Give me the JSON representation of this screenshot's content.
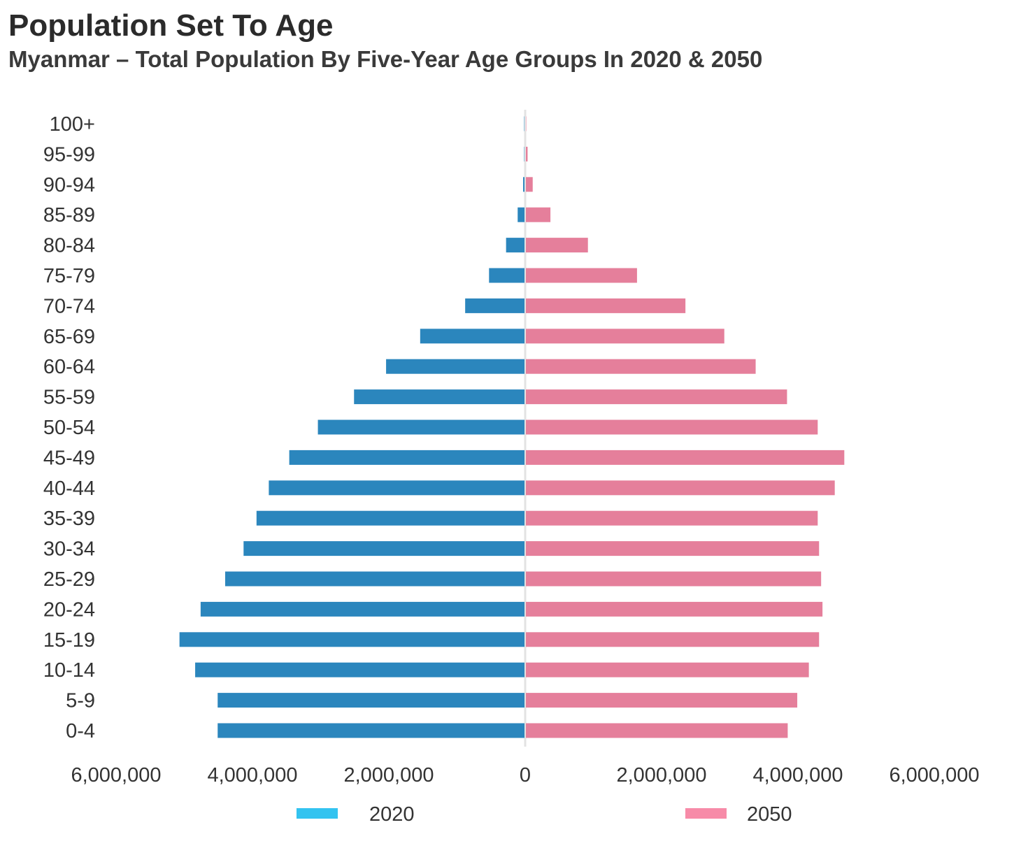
{
  "chart_data": {
    "type": "bar",
    "orientation": "horizontal",
    "layout": "population-pyramid",
    "title": "Population Set To Age",
    "subtitle": "Myanmar – Total Population By Five-Year Age Groups In 2020 & 2050",
    "xlabel": "",
    "ylabel": "",
    "categories": [
      "0-4",
      "5-9",
      "10-14",
      "15-19",
      "20-24",
      "25-29",
      "30-34",
      "35-39",
      "40-44",
      "45-49",
      "50-54",
      "55-59",
      "60-64",
      "65-69",
      "70-74",
      "75-79",
      "80-84",
      "85-89",
      "90-94",
      "95-99",
      "100+"
    ],
    "series": [
      {
        "name": "2020",
        "side": "left",
        "color": "#2b86bd",
        "legend_color": "#33c3f0",
        "values": [
          4500000,
          4500000,
          4830000,
          5060000,
          4750000,
          4390000,
          4120000,
          3930000,
          3750000,
          3450000,
          3030000,
          2500000,
          2030000,
          1530000,
          870000,
          520000,
          270000,
          100000,
          20000,
          5000,
          1000
        ]
      },
      {
        "name": "2050",
        "side": "right",
        "color": "#e57f9b",
        "legend_color": "#f78ba8",
        "values": [
          3840000,
          3980000,
          4150000,
          4300000,
          4350000,
          4330000,
          4300000,
          4280000,
          4530000,
          4670000,
          4280000,
          3830000,
          3370000,
          2910000,
          2340000,
          1630000,
          910000,
          360000,
          100000,
          25000,
          3000
        ]
      }
    ],
    "xlim": [
      -6000000,
      6000000
    ],
    "xticks": [
      {
        "value": -6000000,
        "label": "6,000,000"
      },
      {
        "value": -4000000,
        "label": "4,000,000"
      },
      {
        "value": -2000000,
        "label": "2,000,000"
      },
      {
        "value": 0,
        "label": "0"
      },
      {
        "value": 2000000,
        "label": "2,000,000"
      },
      {
        "value": 4000000,
        "label": "4,000,000"
      },
      {
        "value": 6000000,
        "label": "6,000,000"
      }
    ],
    "grid": false,
    "legend": "bottom"
  }
}
